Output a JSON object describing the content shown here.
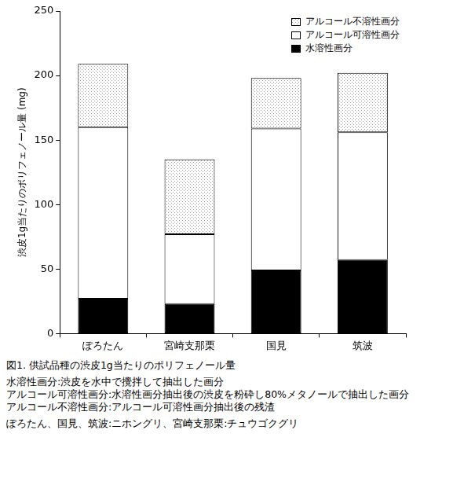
{
  "chart_data": {
    "type": "bar",
    "stacked": true,
    "title": "図1. 供試品種の渋皮1g当たりのポリフェノール量",
    "ylabel": "渋皮1g当たりのポリフェノール量 (mg)",
    "categories": [
      "ぽろたん",
      "宮崎支那栗",
      "国見",
      "筑波"
    ],
    "series": [
      {
        "name": "水溶性画分",
        "color": "#000000",
        "values": [
          27,
          23,
          49,
          57
        ]
      },
      {
        "name": "アルコール可溶性画分",
        "color": "#ffffff",
        "values": [
          133,
          54,
          110,
          99
        ]
      },
      {
        "name": "アルコール不溶性画分",
        "color": "#9a9a9a",
        "marker": "dotted",
        "values": [
          49,
          58,
          39,
          46
        ]
      }
    ],
    "ylim": [
      0,
      250
    ],
    "yticks": [
      0,
      50,
      100,
      150,
      200,
      250
    ],
    "grid": false,
    "legend": "upper right",
    "annotations": [
      "水溶性画分:渋皮を水中で攪拌して抽出した画分",
      "アルコール可溶性画分:水溶性画分抽出後の渋皮を粉砕し80%メタノールで抽出した画分",
      "アルコール不溶性画分:アルコール可溶性画分抽出後の残渣",
      "ぽろたん、国見、筑波:ニホングリ、宮崎支那栗:チュウゴクグリ"
    ]
  }
}
